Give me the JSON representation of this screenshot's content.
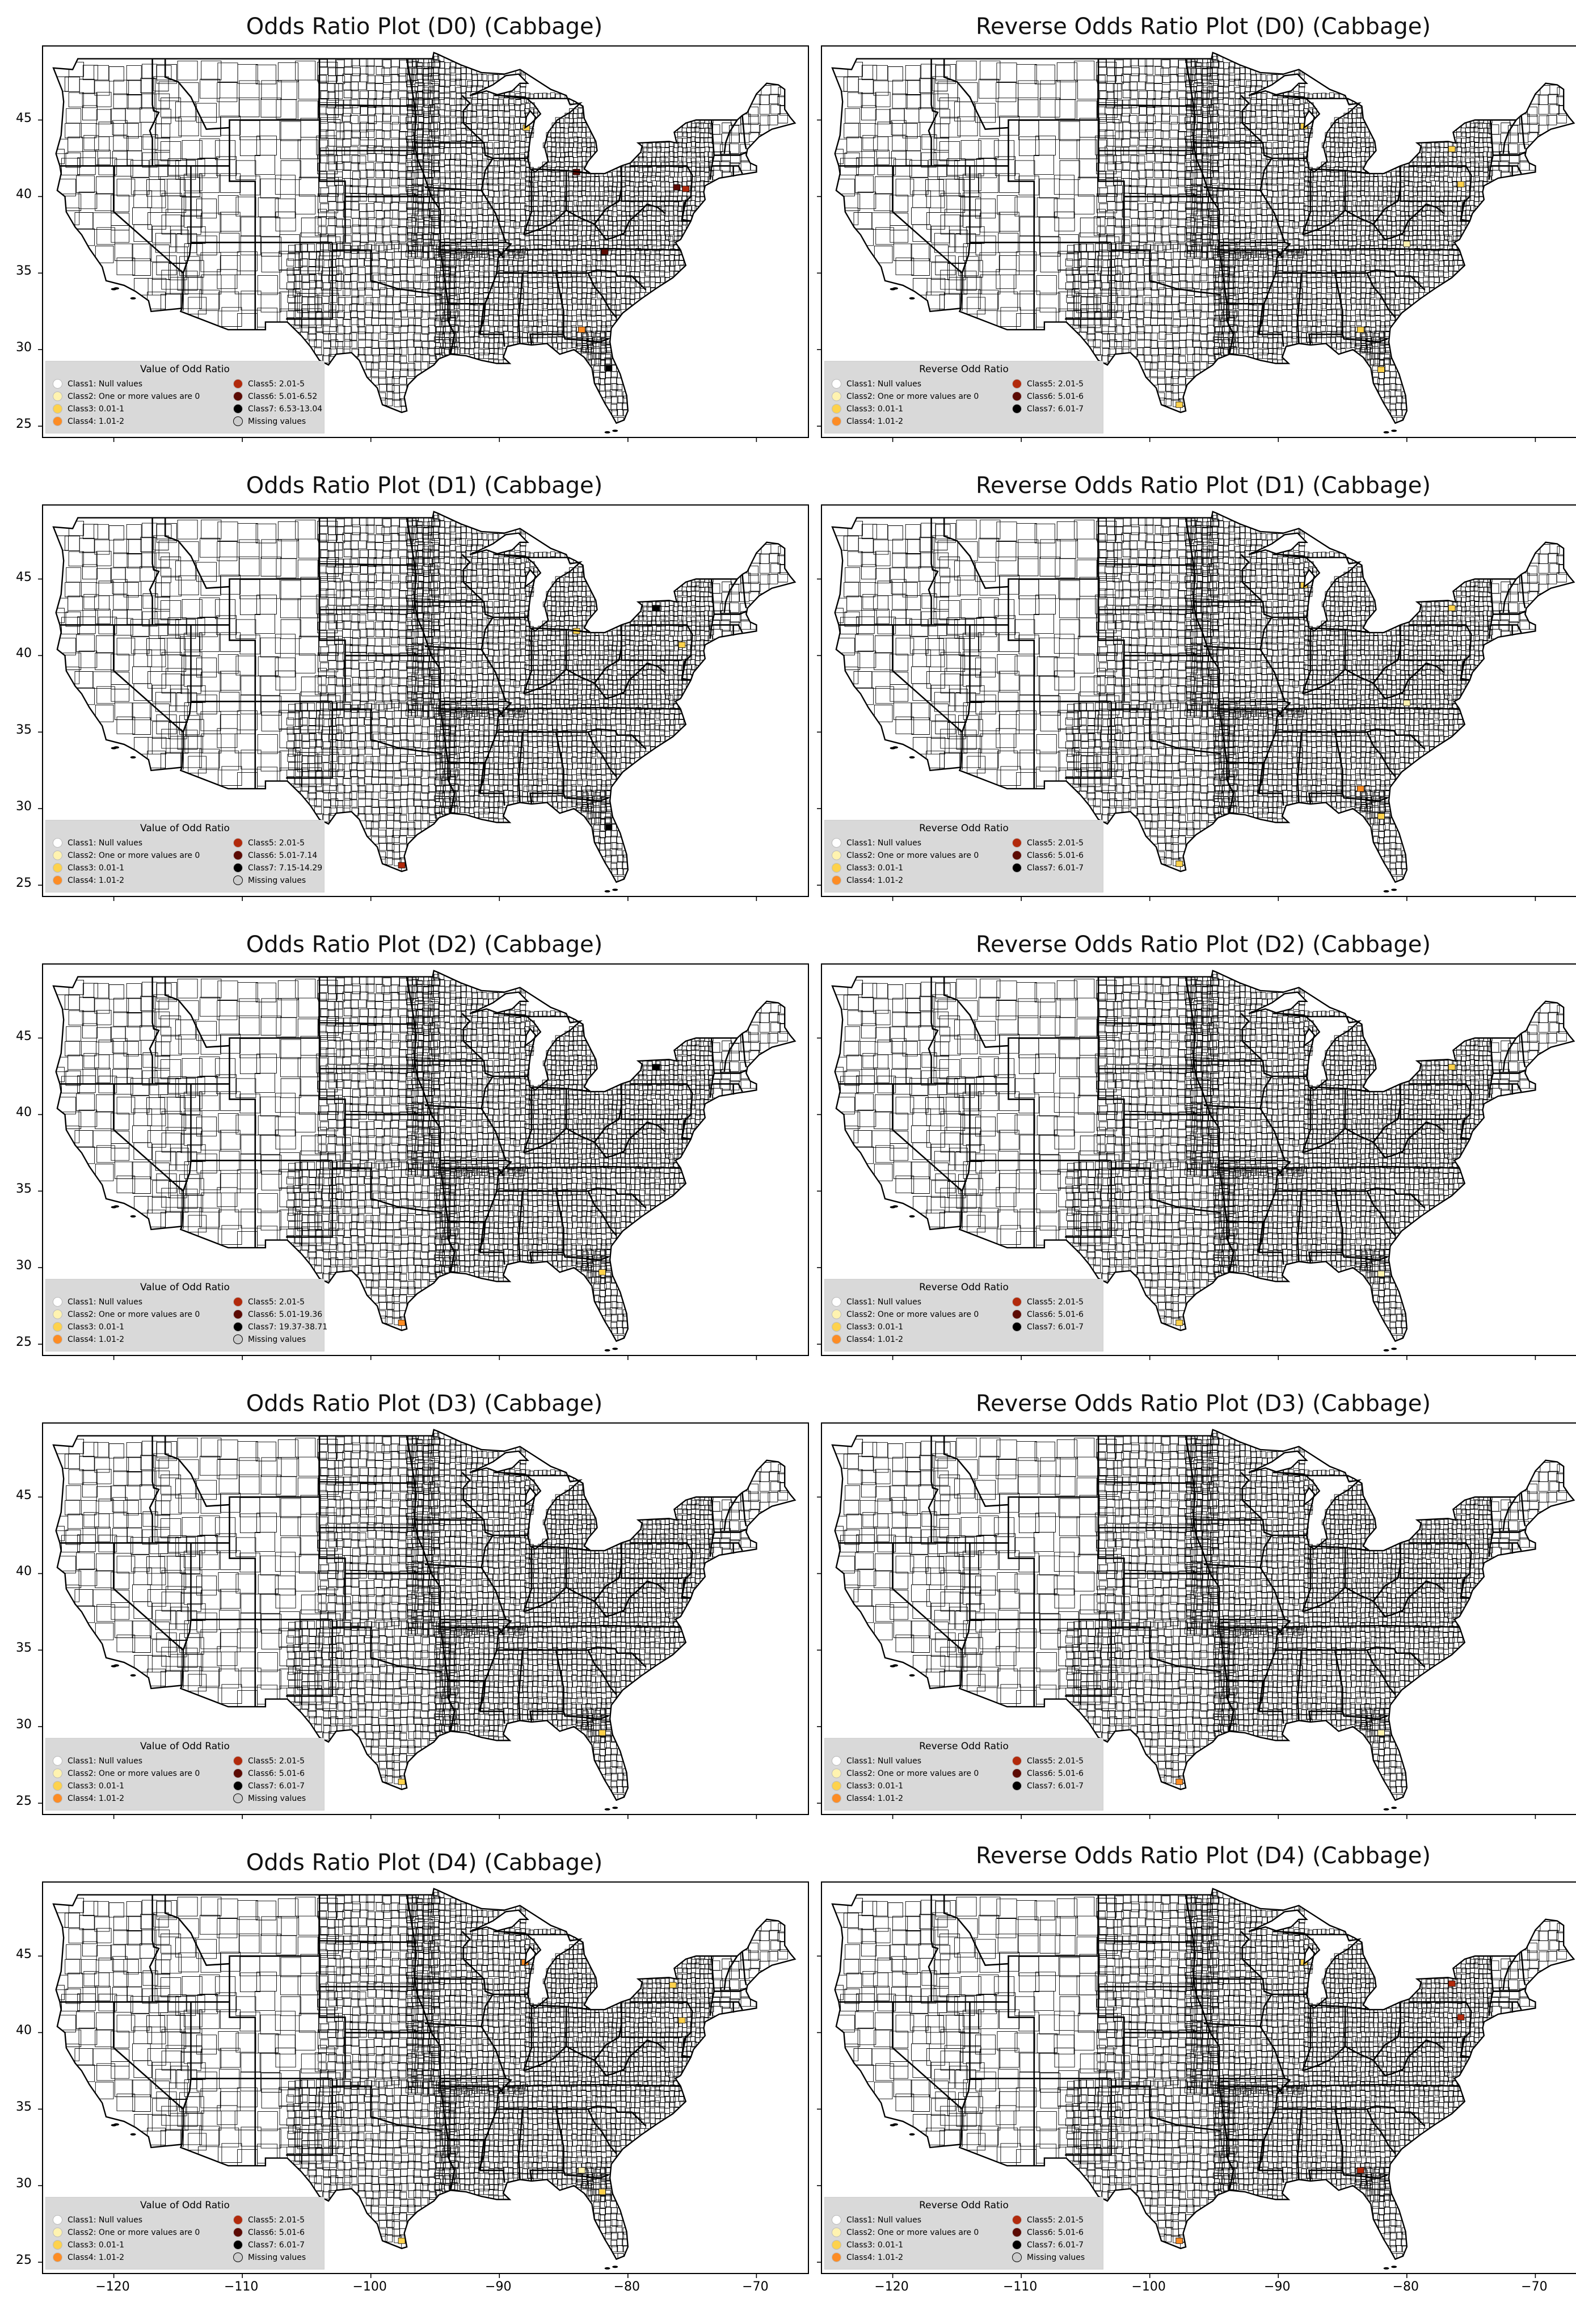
{
  "figure": {
    "panels": [
      {
        "title": "Odds Ratio Plot (D0) (Cabbage)",
        "legend_title": "Value of Odd Ratio",
        "legend_items": [
          {
            "label": "Class1: Null values",
            "color": "#ffffff"
          },
          {
            "label": "Class2: One or more values are 0",
            "color": "#fff3b0"
          },
          {
            "label": "Class3: 0.01-1",
            "color": "#fed24c"
          },
          {
            "label": "Class4: 1.01-2",
            "color": "#fd8c24"
          },
          {
            "label": "Class5: 2.01-5",
            "color": "#b22a0c"
          },
          {
            "label": "Class6: 5.01-6.52",
            "color": "#5c0b04"
          },
          {
            "label": "Class7: 6.53-13.04",
            "color": "#000000"
          },
          {
            "label": "Missing values",
            "color": "#cccccc"
          }
        ],
        "highlights": [
          {
            "lon": -87.9,
            "lat": 44.5,
            "class": 3
          },
          {
            "lon": -75.5,
            "lat": 40.5,
            "class": 5
          },
          {
            "lon": -76.2,
            "lat": 40.6,
            "class": 6
          },
          {
            "lon": -81.8,
            "lat": 36.4,
            "class": 6
          },
          {
            "lon": -83.6,
            "lat": 31.3,
            "class": 4
          },
          {
            "lon": -81.5,
            "lat": 28.8,
            "class": 7
          },
          {
            "lon": -84.0,
            "lat": 41.6,
            "class": 6
          }
        ],
        "show_xticks": false
      },
      {
        "title": "Reverse Odds Ratio Plot (D0) (Cabbage)",
        "legend_title": "Reverse Odd Ratio",
        "legend_items": [
          {
            "label": "Class1: Null values",
            "color": "#ffffff"
          },
          {
            "label": "Class2: One or more values are 0",
            "color": "#fff3b0"
          },
          {
            "label": "Class3: 0.01-1",
            "color": "#fed24c"
          },
          {
            "label": "Class4: 1.01-2",
            "color": "#fd8c24"
          },
          {
            "label": "Class5: 2.01-5",
            "color": "#b22a0c"
          },
          {
            "label": "Class6: 5.01-6",
            "color": "#5c0b04"
          },
          {
            "label": "Class7: 6.01-7",
            "color": "#000000"
          }
        ],
        "highlights": [
          {
            "lon": -88.0,
            "lat": 44.6,
            "class": 3
          },
          {
            "lon": -76.5,
            "lat": 43.1,
            "class": 3
          },
          {
            "lon": -75.8,
            "lat": 40.8,
            "class": 3
          },
          {
            "lon": -83.6,
            "lat": 31.3,
            "class": 3
          },
          {
            "lon": -82.0,
            "lat": 28.7,
            "class": 3
          },
          {
            "lon": -97.7,
            "lat": 26.4,
            "class": 3
          },
          {
            "lon": -80.0,
            "lat": 36.9,
            "class": 2
          }
        ],
        "show_xticks": false
      },
      {
        "title": "Odds Ratio Plot (D1) (Cabbage)",
        "legend_title": "Value of Odd Ratio",
        "legend_items": [
          {
            "label": "Class1: Null values",
            "color": "#ffffff"
          },
          {
            "label": "Class2: One or more values are 0",
            "color": "#fff3b0"
          },
          {
            "label": "Class3: 0.01-1",
            "color": "#fed24c"
          },
          {
            "label": "Class4: 1.01-2",
            "color": "#fd8c24"
          },
          {
            "label": "Class5: 2.01-5",
            "color": "#b22a0c"
          },
          {
            "label": "Class6: 5.01-7.14",
            "color": "#5c0b04"
          },
          {
            "label": "Class7: 7.15-14.29",
            "color": "#000000"
          },
          {
            "label": "Missing values",
            "color": "#cccccc"
          }
        ],
        "highlights": [
          {
            "lon": -77.8,
            "lat": 43.1,
            "class": 7
          },
          {
            "lon": -75.8,
            "lat": 40.7,
            "class": 3
          },
          {
            "lon": -97.6,
            "lat": 26.3,
            "class": 5
          },
          {
            "lon": -81.5,
            "lat": 28.8,
            "class": 7
          },
          {
            "lon": -84.0,
            "lat": 41.6,
            "class": 3
          }
        ],
        "show_xticks": false
      },
      {
        "title": "Reverse Odds Ratio Plot (D1) (Cabbage)",
        "legend_title": "Reverse Odd Ratio",
        "legend_items": [
          {
            "label": "Class1: Null values",
            "color": "#ffffff"
          },
          {
            "label": "Class2: One or more values are 0",
            "color": "#fff3b0"
          },
          {
            "label": "Class3: 0.01-1",
            "color": "#fed24c"
          },
          {
            "label": "Class4: 1.01-2",
            "color": "#fd8c24"
          },
          {
            "label": "Class5: 2.01-5",
            "color": "#b22a0c"
          },
          {
            "label": "Class6: 5.01-6",
            "color": "#5c0b04"
          },
          {
            "label": "Class7: 6.01-7",
            "color": "#000000"
          }
        ],
        "highlights": [
          {
            "lon": -88.0,
            "lat": 44.6,
            "class": 3
          },
          {
            "lon": -76.5,
            "lat": 43.1,
            "class": 3
          },
          {
            "lon": -83.6,
            "lat": 31.3,
            "class": 4
          },
          {
            "lon": -82.0,
            "lat": 29.5,
            "class": 3
          },
          {
            "lon": -97.7,
            "lat": 26.4,
            "class": 3
          },
          {
            "lon": -80.0,
            "lat": 36.9,
            "class": 2
          }
        ],
        "show_xticks": false
      },
      {
        "title": "Odds Ratio Plot (D2) (Cabbage)",
        "legend_title": "Value of Odd Ratio",
        "legend_items": [
          {
            "label": "Class1: Null values",
            "color": "#ffffff"
          },
          {
            "label": "Class2: One or more values are 0",
            "color": "#fff3b0"
          },
          {
            "label": "Class3: 0.01-1",
            "color": "#fed24c"
          },
          {
            "label": "Class4: 1.01-2",
            "color": "#fd8c24"
          },
          {
            "label": "Class5: 2.01-5",
            "color": "#b22a0c"
          },
          {
            "label": "Class6: 5.01-19.36",
            "color": "#5c0b04"
          },
          {
            "label": "Class7: 19.37-38.71",
            "color": "#000000"
          },
          {
            "label": "Missing values",
            "color": "#cccccc"
          }
        ],
        "highlights": [
          {
            "lon": -77.8,
            "lat": 43.1,
            "class": 7
          },
          {
            "lon": -82.0,
            "lat": 29.7,
            "class": 3
          },
          {
            "lon": -97.6,
            "lat": 26.4,
            "class": 4
          }
        ],
        "show_xticks": false
      },
      {
        "title": "Reverse Odds Ratio Plot (D2) (Cabbage)",
        "legend_title": "Reverse Odd Ratio",
        "legend_items": [
          {
            "label": "Class1: Null values",
            "color": "#ffffff"
          },
          {
            "label": "Class2: One or more values are 0",
            "color": "#fff3b0"
          },
          {
            "label": "Class3: 0.01-1",
            "color": "#fed24c"
          },
          {
            "label": "Class4: 1.01-2",
            "color": "#fd8c24"
          },
          {
            "label": "Class5: 2.01-5",
            "color": "#b22a0c"
          },
          {
            "label": "Class6: 5.01-6",
            "color": "#5c0b04"
          },
          {
            "label": "Class7: 6.01-7",
            "color": "#000000"
          }
        ],
        "highlights": [
          {
            "lon": -76.5,
            "lat": 43.1,
            "class": 3
          },
          {
            "lon": -82.0,
            "lat": 29.6,
            "class": 2
          },
          {
            "lon": -97.7,
            "lat": 26.4,
            "class": 3
          }
        ],
        "show_xticks": false
      },
      {
        "title": "Odds Ratio Plot (D3) (Cabbage)",
        "legend_title": "Value of Odd Ratio",
        "legend_items": [
          {
            "label": "Class1: Null values",
            "color": "#ffffff"
          },
          {
            "label": "Class2: One or more values are 0",
            "color": "#fff3b0"
          },
          {
            "label": "Class3: 0.01-1",
            "color": "#fed24c"
          },
          {
            "label": "Class4: 1.01-2",
            "color": "#fd8c24"
          },
          {
            "label": "Class5: 2.01-5",
            "color": "#b22a0c"
          },
          {
            "label": "Class6: 5.01-6",
            "color": "#5c0b04"
          },
          {
            "label": "Class7: 6.01-7",
            "color": "#000000"
          },
          {
            "label": "Missing values",
            "color": "#cccccc"
          }
        ],
        "highlights": [
          {
            "lon": -82.0,
            "lat": 29.6,
            "class": 3
          },
          {
            "lon": -97.6,
            "lat": 26.4,
            "class": 3
          }
        ],
        "show_xticks": false
      },
      {
        "title": "Reverse Odds Ratio Plot (D3) (Cabbage)",
        "legend_title": "Reverse Odd Ratio",
        "legend_items": [
          {
            "label": "Class1: Null values",
            "color": "#ffffff"
          },
          {
            "label": "Class2: One or more values are 0",
            "color": "#fff3b0"
          },
          {
            "label": "Class3: 0.01-1",
            "color": "#fed24c"
          },
          {
            "label": "Class4: 1.01-2",
            "color": "#fd8c24"
          },
          {
            "label": "Class5: 2.01-5",
            "color": "#b22a0c"
          },
          {
            "label": "Class6: 5.01-6",
            "color": "#5c0b04"
          },
          {
            "label": "Class7: 6.01-7",
            "color": "#000000"
          }
        ],
        "highlights": [
          {
            "lon": -82.0,
            "lat": 29.6,
            "class": 2
          },
          {
            "lon": -97.7,
            "lat": 26.4,
            "class": 4
          }
        ],
        "show_xticks": false
      },
      {
        "title": "Odds Ratio Plot (D4) (Cabbage)",
        "legend_title": "Value of Odd Ratio",
        "legend_items": [
          {
            "label": "Class1: Null values",
            "color": "#ffffff"
          },
          {
            "label": "Class2: One or more values are 0",
            "color": "#fff3b0"
          },
          {
            "label": "Class3: 0.01-1",
            "color": "#fed24c"
          },
          {
            "label": "Class4: 1.01-2",
            "color": "#fd8c24"
          },
          {
            "label": "Class5: 2.01-5",
            "color": "#b22a0c"
          },
          {
            "label": "Class6: 5.01-6",
            "color": "#5c0b04"
          },
          {
            "label": "Class7: 6.01-7",
            "color": "#000000"
          },
          {
            "label": "Missing values",
            "color": "#cccccc"
          }
        ],
        "highlights": [
          {
            "lon": -88.0,
            "lat": 44.6,
            "class": 4
          },
          {
            "lon": -76.5,
            "lat": 43.1,
            "class": 3
          },
          {
            "lon": -75.8,
            "lat": 40.8,
            "class": 3
          },
          {
            "lon": -82.0,
            "lat": 29.6,
            "class": 3
          },
          {
            "lon": -97.6,
            "lat": 26.4,
            "class": 3
          },
          {
            "lon": -83.6,
            "lat": 31.0,
            "class": 2
          }
        ],
        "show_xticks": true
      },
      {
        "title": "Reverse Odds Ratio Plot (D4) (Cabbage)",
        "legend_title": "Reverse Odd Ratio",
        "legend_items": [
          {
            "label": "Class1: Null values",
            "color": "#ffffff"
          },
          {
            "label": "Class2: One or more values are 0",
            "color": "#fff3b0"
          },
          {
            "label": "Class3: 0.01-1",
            "color": "#fed24c"
          },
          {
            "label": "Class4: 1.01-2",
            "color": "#fd8c24"
          },
          {
            "label": "Class5: 2.01-5",
            "color": "#b22a0c"
          },
          {
            "label": "Class6: 5.01-6",
            "color": "#5c0b04"
          },
          {
            "label": "Class7: 6.01-7",
            "color": "#000000"
          },
          {
            "label": "Missing values",
            "color": "#cccccc"
          }
        ],
        "highlights": [
          {
            "lon": -88.0,
            "lat": 44.6,
            "class": 3
          },
          {
            "lon": -76.5,
            "lat": 43.2,
            "class": 5
          },
          {
            "lon": -75.8,
            "lat": 41.0,
            "class": 5
          },
          {
            "lon": -83.6,
            "lat": 31.0,
            "class": 5
          },
          {
            "lon": -97.7,
            "lat": 26.4,
            "class": 4
          }
        ],
        "show_xticks": true
      }
    ],
    "axes": {
      "xlim": [
        -125.5,
        -66.0
      ],
      "ylim": [
        24.3,
        49.8
      ],
      "xticks": [
        -120,
        -110,
        -100,
        -90,
        -80,
        -70
      ],
      "xtick_labels": [
        "−120",
        "−110",
        "−100",
        "−90",
        "−80",
        "−70"
      ],
      "yticks": [
        25,
        30,
        35,
        40,
        45
      ],
      "ytick_labels": [
        "25",
        "30",
        "35",
        "40",
        "45"
      ]
    },
    "colors": {
      "county_fill": "#ffffff",
      "county_stroke": "#000000",
      "legend_bg": "#d9d9d9"
    }
  }
}
